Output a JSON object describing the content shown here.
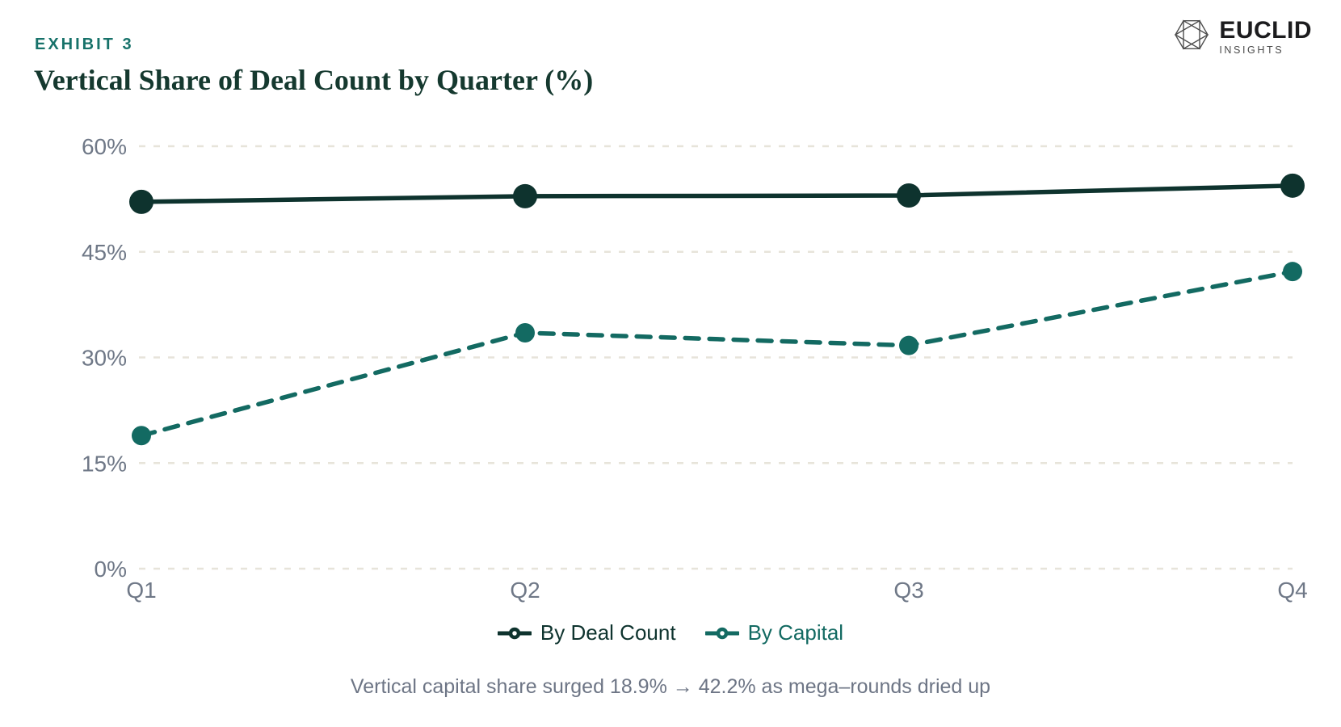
{
  "header": {
    "exhibit": "EXHIBIT 3",
    "title": "Vertical Share of Deal Count by Quarter (%)"
  },
  "brand": {
    "name": "EUCLID",
    "tagline": "INSIGHTS",
    "icon": "icosahedron-wireframe"
  },
  "chart_data": {
    "type": "line",
    "title": "Vertical Share of Deal Count by Quarter (%)",
    "categories": [
      "Q1",
      "Q2",
      "Q3",
      "Q4"
    ],
    "series": [
      {
        "name": "By Deal Count",
        "values": [
          52.1,
          52.9,
          53.0,
          54.4
        ],
        "color": "#0e332e",
        "line_style": "solid",
        "marker": "filled-circle",
        "marker_radius": 15
      },
      {
        "name": "By Capital",
        "values": [
          18.9,
          33.5,
          31.7,
          42.2
        ],
        "color": "#136a62",
        "line_style": "dashed",
        "marker": "filled-circle",
        "marker_radius": 12
      }
    ],
    "xlabel": "",
    "ylabel": "",
    "ylim": [
      0,
      66
    ],
    "yticks": [
      {
        "value": 0,
        "label": "0%"
      },
      {
        "value": 15,
        "label": "15%"
      },
      {
        "value": 30,
        "label": "30%"
      },
      {
        "value": 45,
        "label": "45%"
      },
      {
        "value": 60,
        "label": "60%"
      }
    ],
    "grid": "horizontal-dashed",
    "legend_position": "bottom",
    "caption": "Vertical capital share surged 18.9% → 42.2% as mega–rounds dried up"
  },
  "colors": {
    "background": "#ffffff",
    "grid": "#e7e4da",
    "axis_text": "#6f7887",
    "caption_text": "#6d7585",
    "exhibit_accent": "#17726a",
    "title_text": "#15392f"
  }
}
